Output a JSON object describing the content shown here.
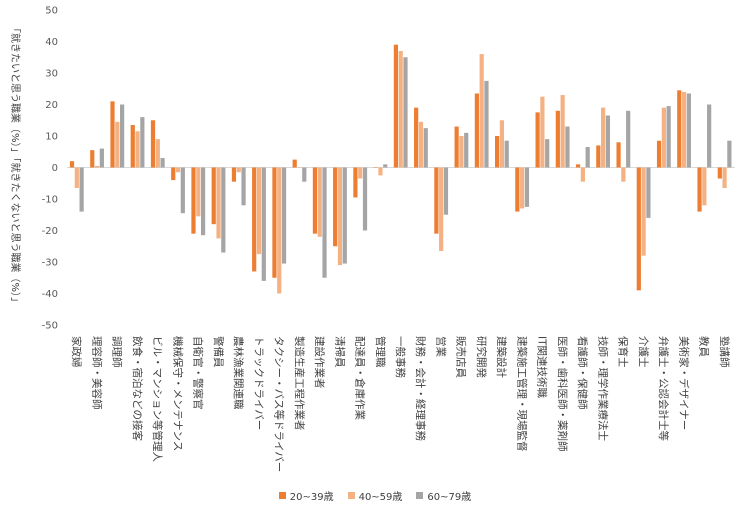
{
  "chart_data": {
    "type": "bar",
    "ylabel": "「就きたいと思う職業（%）」「就きたくないと思う職業（%）」",
    "ylim": [
      -50,
      50
    ],
    "yticks": [
      50,
      40,
      30,
      20,
      10,
      0,
      -10,
      -20,
      -30,
      -40,
      -50
    ],
    "grid": false,
    "legend_position": "bottom",
    "categories": [
      "家政婦",
      "理容師・美容師",
      "調理師",
      "飲食・宿泊などの接客",
      "ビル・マンション等管理人",
      "機械保守・メンテナンス",
      "自衛官・警察官",
      "警備員",
      "農林漁業関連職",
      "トラックドライバー",
      "タクシー・バス等ドライバー",
      "製造生産工程作業者",
      "建設作業者",
      "清掃員",
      "配達員・倉庫作業",
      "管理職",
      "一般事務",
      "財務・会計・経理事務",
      "営業",
      "販売店員",
      "研究開発",
      "建築設計",
      "建築施工管理・現場監督",
      "IT関連技術職",
      "医師・歯科医師・薬剤師",
      "看護師・保健師",
      "技師・理学作業療法士",
      "保育士",
      "介護士",
      "弁護士・公認会計士等",
      "美術家・デザイナー",
      "教員",
      "塾講師"
    ],
    "series": [
      {
        "name": "20~39歳",
        "color": "#ED7D31",
        "values": [
          2,
          5.5,
          21,
          13.5,
          15,
          -4,
          -21,
          -18,
          -4.5,
          -33,
          -35,
          2.5,
          -21,
          -25,
          -9.5,
          0,
          39,
          19,
          -21,
          13,
          23.5,
          10,
          -14,
          17.5,
          18,
          1,
          7,
          8,
          -39,
          8.5,
          24.5,
          -14,
          -3.5
        ]
      },
      {
        "name": "40~59歳",
        "color": "#F4B183",
        "values": [
          -6.5,
          0.5,
          14.5,
          11.5,
          9,
          -1.5,
          -15.5,
          -22.5,
          -1.5,
          -27.5,
          -40,
          0,
          -22,
          -31,
          -3.5,
          -2.5,
          37,
          14.5,
          -26.5,
          10,
          36,
          15,
          -13,
          22.5,
          23,
          -4.5,
          19,
          -4.5,
          -28,
          19,
          24,
          -12,
          -6.5
        ]
      },
      {
        "name": "60~79歳",
        "color": "#A5A5A5",
        "values": [
          -14,
          6,
          20,
          16,
          3,
          -14.5,
          -21.5,
          -27,
          -12,
          -36,
          -30.5,
          -4.5,
          -35,
          -30.5,
          -20,
          1,
          35,
          12.5,
          -15,
          11,
          27.5,
          8.5,
          -12.5,
          9,
          13,
          6.5,
          16.5,
          18,
          -16,
          19.5,
          23.5,
          20,
          8.5
        ]
      }
    ]
  }
}
